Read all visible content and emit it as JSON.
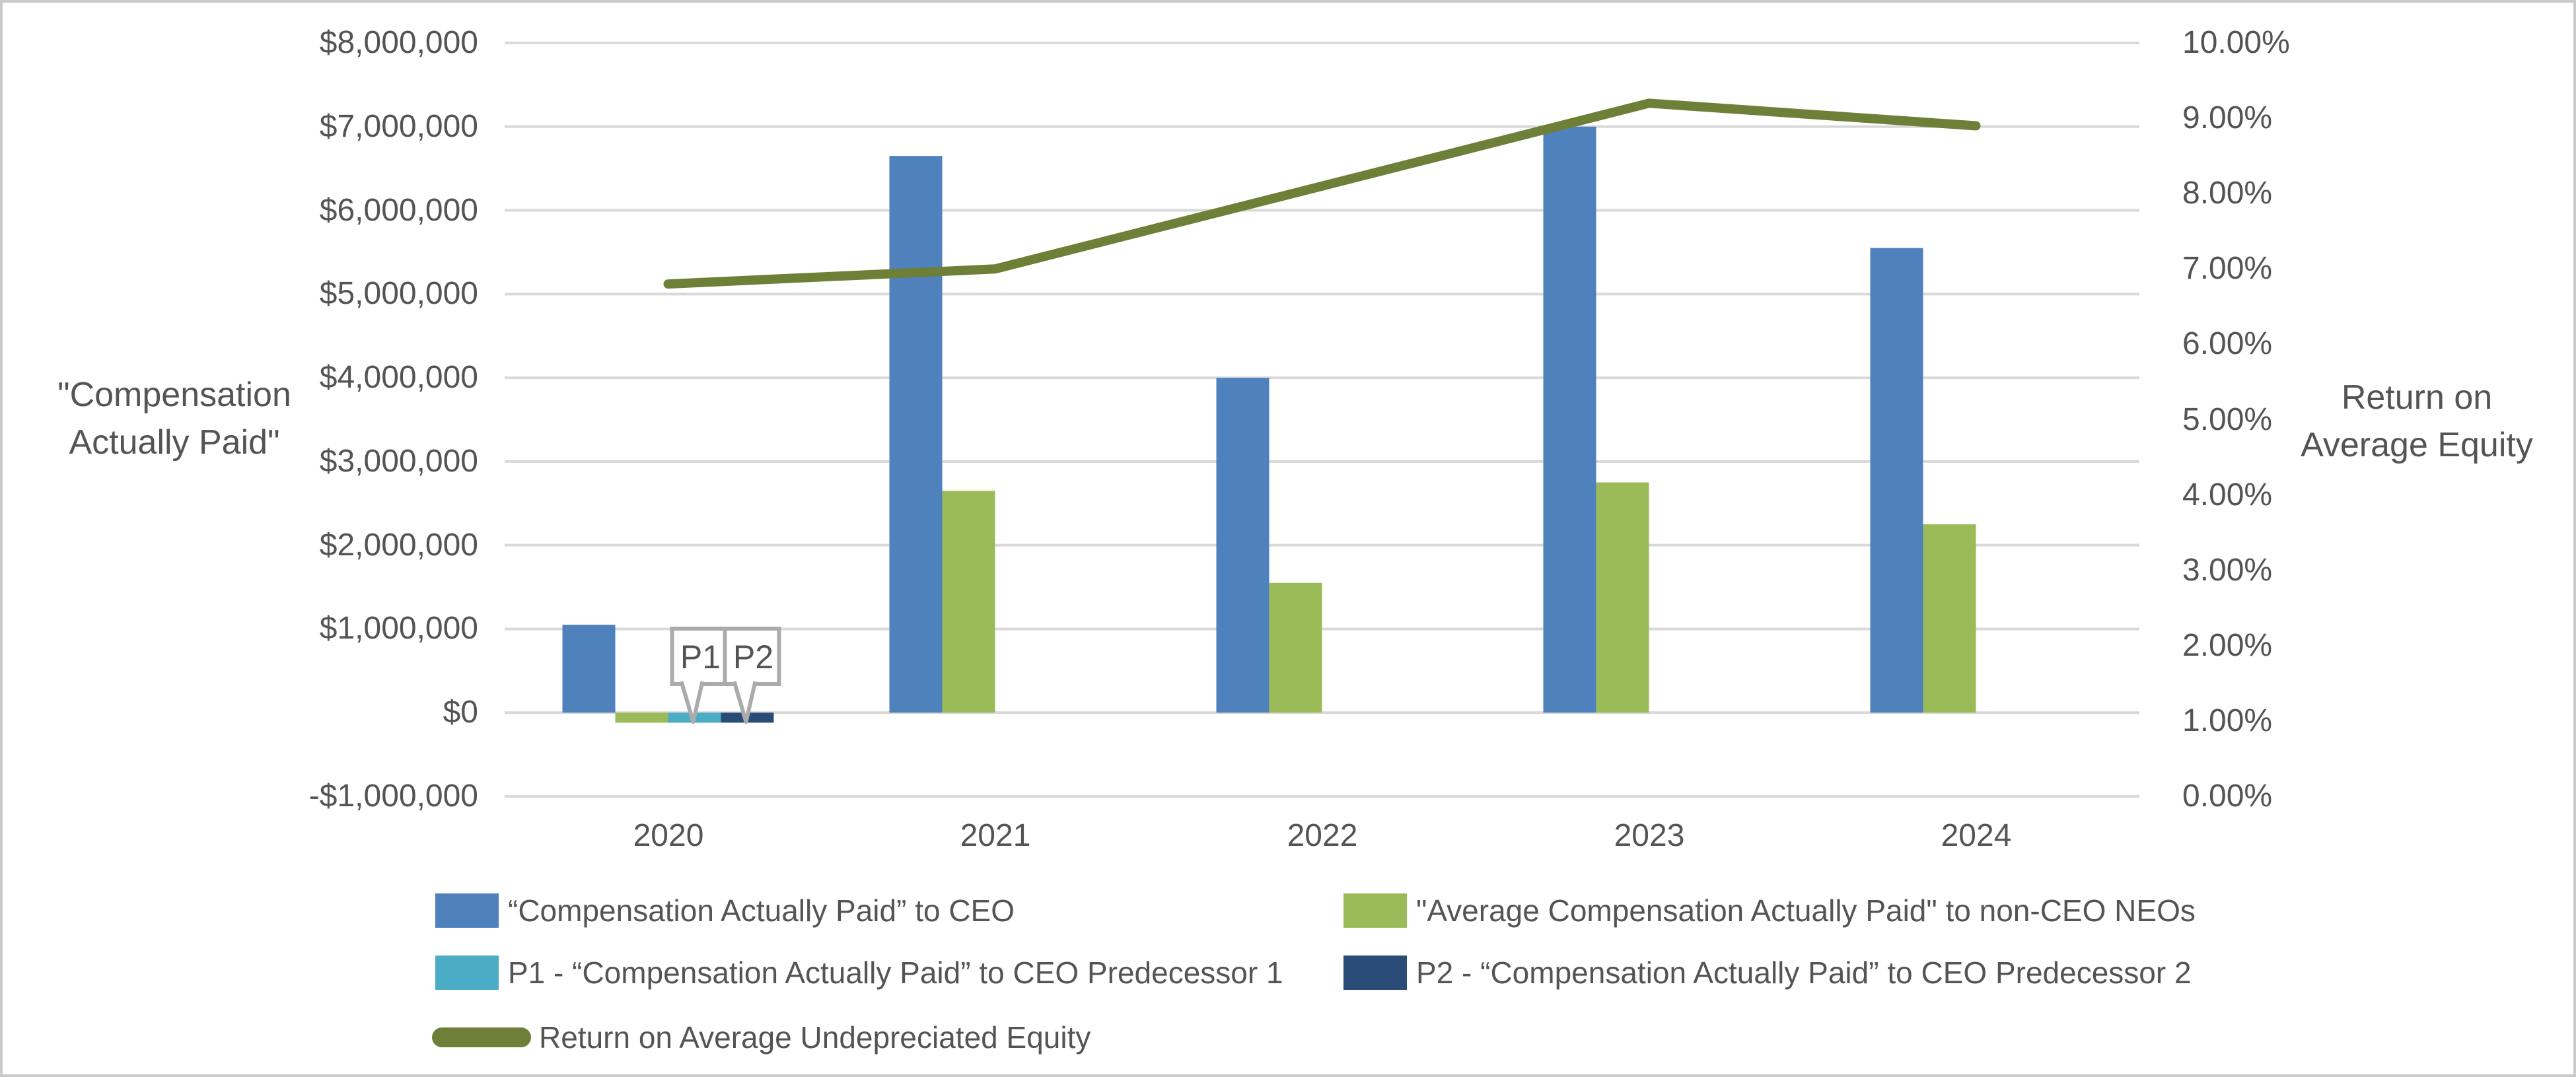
{
  "chart_data": {
    "type": "bar",
    "subtype": "combo-bar-line-dual-axis",
    "categories": [
      "2020",
      "2021",
      "2022",
      "2023",
      "2024"
    ],
    "series": [
      {
        "name": "“Compensation Actually Paid” to CEO",
        "type": "bar",
        "axis": "left",
        "color": "#4F81BD",
        "values": [
          1050000,
          6650000,
          4000000,
          7000000,
          5550000
        ]
      },
      {
        "name": "\"Average Compensation Actually Paid\" to non-CEO NEOs",
        "type": "bar",
        "axis": "left",
        "color": "#9BBB59",
        "values": [
          -120000,
          2650000,
          1550000,
          2750000,
          2250000
        ]
      },
      {
        "name": "P1 - “Compensation Actually Paid” to CEO Predecessor 1",
        "type": "bar",
        "axis": "left",
        "color": "#4BACC6",
        "values": [
          -120000,
          null,
          null,
          null,
          null
        ]
      },
      {
        "name": "P2 - “Compensation Actually Paid” to CEO Predecessor 2",
        "type": "bar",
        "axis": "left",
        "color": "#2A4D78",
        "values": [
          -120000,
          null,
          null,
          null,
          null
        ]
      },
      {
        "name": "Return on Average Undepreciated Equity",
        "type": "line",
        "axis": "right",
        "color": "#6E7F38",
        "values": [
          6.8,
          7.0,
          8.1,
          9.2,
          8.9
        ]
      }
    ],
    "left_axis": {
      "title": "\"Compensation\nActually Paid\"",
      "min": -1000000,
      "max": 8000000,
      "step": 1000000,
      "tick_labels": [
        "$8,000,000",
        "$7,000,000",
        "$6,000,000",
        "$5,000,000",
        "$4,000,000",
        "$3,000,000",
        "$2,000,000",
        "$1,000,000",
        "$0",
        "-$1,000,000"
      ]
    },
    "right_axis": {
      "title": "Return on\nAverage Equity",
      "min": 0,
      "max": 10,
      "step": 1,
      "tick_labels": [
        "10.00%",
        "9.00%",
        "8.00%",
        "7.00%",
        "6.00%",
        "5.00%",
        "4.00%",
        "3.00%",
        "2.00%",
        "1.00%",
        "0.00%"
      ]
    },
    "annotations": [
      {
        "label": "P1",
        "series_index": 2,
        "category_index": 0
      },
      {
        "label": "P2",
        "series_index": 3,
        "category_index": 0
      }
    ],
    "grid": true,
    "grid_color": "#D9D9D9",
    "legend_position": "bottom",
    "text_color": "#545454",
    "callout_border_color": "#ABABAB"
  }
}
